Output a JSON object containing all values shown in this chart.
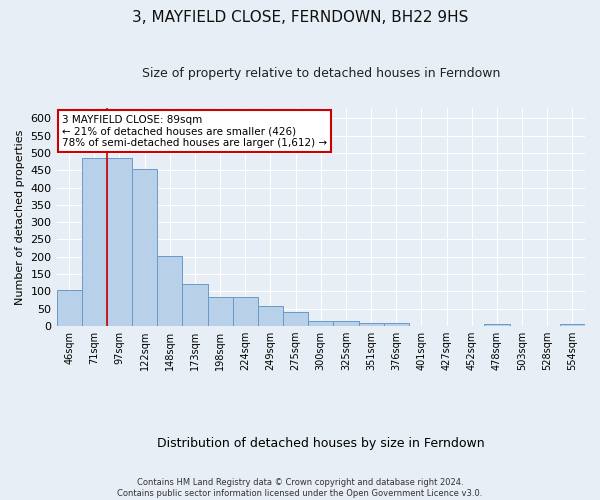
{
  "title": "3, MAYFIELD CLOSE, FERNDOWN, BH22 9HS",
  "subtitle": "Size of property relative to detached houses in Ferndown",
  "xlabel": "Distribution of detached houses by size in Ferndown",
  "ylabel": "Number of detached properties",
  "footer_line1": "Contains HM Land Registry data © Crown copyright and database right 2024.",
  "footer_line2": "Contains public sector information licensed under the Open Government Licence v3.0.",
  "categories": [
    "46sqm",
    "71sqm",
    "97sqm",
    "122sqm",
    "148sqm",
    "173sqm",
    "198sqm",
    "224sqm",
    "249sqm",
    "275sqm",
    "300sqm",
    "325sqm",
    "351sqm",
    "376sqm",
    "401sqm",
    "427sqm",
    "452sqm",
    "478sqm",
    "503sqm",
    "528sqm",
    "554sqm"
  ],
  "values": [
    105,
    487,
    485,
    453,
    202,
    120,
    83,
    83,
    57,
    40,
    15,
    15,
    10,
    10,
    1,
    1,
    1,
    5,
    0,
    0,
    6
  ],
  "bar_color": "#b8d0e8",
  "bar_edge_color": "#6699cc",
  "annotation_text": "3 MAYFIELD CLOSE: 89sqm\n← 21% of detached houses are smaller (426)\n78% of semi-detached houses are larger (1,612) →",
  "annotation_box_color": "#ffffff",
  "annotation_box_edge": "#cc0000",
  "property_line_x": 1.5,
  "ylim": [
    0,
    630
  ],
  "yticks": [
    0,
    50,
    100,
    150,
    200,
    250,
    300,
    350,
    400,
    450,
    500,
    550,
    600
  ],
  "bg_color": "#e8eef5",
  "fig_color": "#e8eef5",
  "grid_color": "#ffffff",
  "title_fontsize": 11,
  "subtitle_fontsize": 9,
  "footer_fontsize": 6,
  "ylabel_fontsize": 8,
  "xlabel_fontsize": 9,
  "ytick_fontsize": 8,
  "xtick_fontsize": 7
}
